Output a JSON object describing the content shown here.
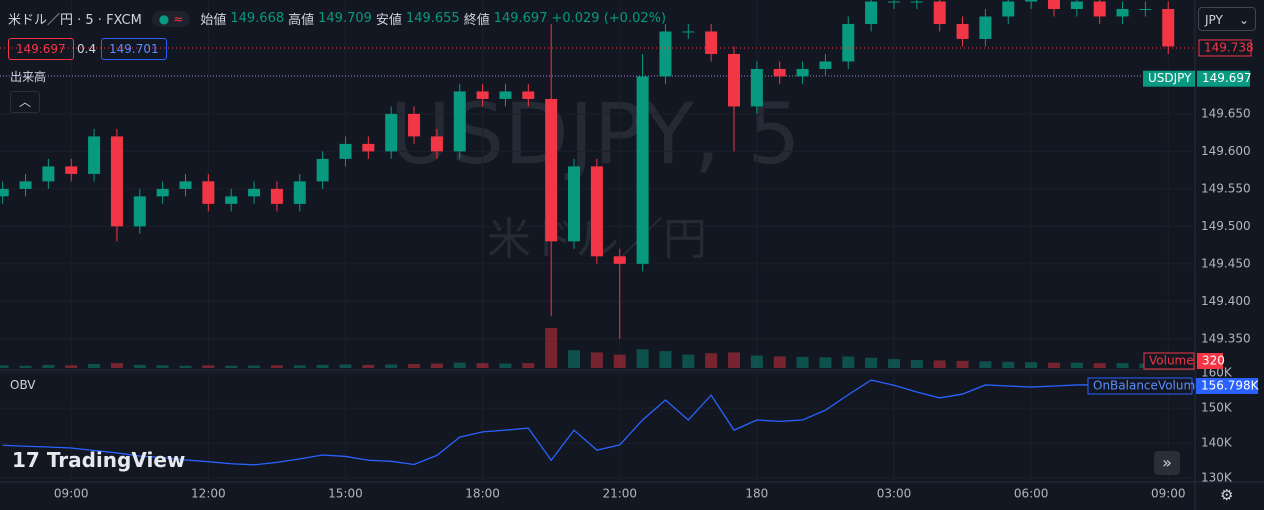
{
  "header": {
    "symbol": "米ドル／円 · 5 · FXCM",
    "open_label": "始値",
    "open": "149.668",
    "high_label": "高値",
    "high": "149.709",
    "low_label": "安値",
    "low": "149.655",
    "close_label": "終値",
    "close": "149.697",
    "change": "+0.029 (+0.02%)"
  },
  "quote": {
    "bid": "149.697",
    "spread": "0.4",
    "ask": "149.701"
  },
  "volume_pane_label": "出来高",
  "currency": "JPY",
  "brand": "TradingView",
  "watermark": {
    "symbol": "USDJPY, 5",
    "name": "米ドル／円"
  },
  "chart_data": {
    "type": "candlestick",
    "x": [
      -18,
      -12,
      -6,
      0,
      6,
      12,
      18,
      24,
      30,
      36,
      42,
      48,
      54,
      60,
      66,
      72,
      78,
      84,
      90,
      96,
      102,
      108,
      114,
      120,
      126,
      132,
      138,
      144,
      150,
      156,
      162,
      168,
      174,
      180,
      186,
      192,
      198,
      204,
      210,
      216,
      222,
      228,
      234,
      240,
      246,
      252,
      258,
      264,
      270,
      276,
      282,
      288
    ],
    "open": [
      149.54,
      149.55,
      149.56,
      149.58,
      149.57,
      149.62,
      149.5,
      149.54,
      149.55,
      149.56,
      149.53,
      149.54,
      149.55,
      149.53,
      149.56,
      149.59,
      149.61,
      149.6,
      149.65,
      149.62,
      149.6,
      149.68,
      149.67,
      149.68,
      149.67,
      149.48,
      149.58,
      149.46,
      149.45,
      149.7,
      149.76,
      149.76,
      149.73,
      149.66,
      149.71,
      149.7,
      149.71,
      149.72,
      149.77,
      149.8,
      149.8,
      149.8,
      149.77,
      149.75,
      149.78,
      149.8,
      149.81,
      149.79,
      149.8,
      149.78,
      149.79,
      149.79
    ],
    "high": [
      149.56,
      149.57,
      149.59,
      149.59,
      149.63,
      149.63,
      149.55,
      149.56,
      149.57,
      149.57,
      149.55,
      149.56,
      149.56,
      149.57,
      149.6,
      149.62,
      149.62,
      149.66,
      149.66,
      149.63,
      149.69,
      149.69,
      149.69,
      149.69,
      149.77,
      149.59,
      149.59,
      149.47,
      149.73,
      149.77,
      149.77,
      149.77,
      149.74,
      149.72,
      149.72,
      149.72,
      149.73,
      149.78,
      149.81,
      149.81,
      149.81,
      149.81,
      149.78,
      149.79,
      149.81,
      149.82,
      149.82,
      149.81,
      149.81,
      149.8,
      149.8,
      149.8
    ],
    "low": [
      149.53,
      149.54,
      149.55,
      149.56,
      149.56,
      149.48,
      149.49,
      149.53,
      149.54,
      149.52,
      149.52,
      149.53,
      149.52,
      149.52,
      149.55,
      149.58,
      149.59,
      149.59,
      149.61,
      149.59,
      149.59,
      149.66,
      149.66,
      149.66,
      149.38,
      149.47,
      149.45,
      149.35,
      149.44,
      149.69,
      149.75,
      149.72,
      149.6,
      149.65,
      149.69,
      149.69,
      149.7,
      149.71,
      149.76,
      149.79,
      149.79,
      149.76,
      149.74,
      149.74,
      149.77,
      149.79,
      149.78,
      149.78,
      149.77,
      149.77,
      149.78,
      149.73
    ],
    "close": [
      149.55,
      149.56,
      149.58,
      149.57,
      149.62,
      149.5,
      149.54,
      149.55,
      149.56,
      149.53,
      149.54,
      149.55,
      149.53,
      149.56,
      149.59,
      149.61,
      149.6,
      149.65,
      149.62,
      149.6,
      149.68,
      149.67,
      149.68,
      149.67,
      149.48,
      149.58,
      149.46,
      149.45,
      149.7,
      149.76,
      149.76,
      149.73,
      149.66,
      149.71,
      149.7,
      149.71,
      149.72,
      149.77,
      149.8,
      149.8,
      149.8,
      149.77,
      149.75,
      149.78,
      149.8,
      149.81,
      149.79,
      149.8,
      149.78,
      149.79,
      149.79,
      149.74
    ],
    "up_color": "#089981",
    "down_color": "#f23645",
    "xlim": [
      -18.7,
      294.5
    ],
    "xticks": [
      {
        "value": 0,
        "label": "09:00"
      },
      {
        "value": 36,
        "label": "12:00"
      },
      {
        "value": 72,
        "label": "15:00"
      },
      {
        "value": 108,
        "label": "18:00"
      },
      {
        "value": 144,
        "label": "21:00"
      },
      180,
      {
        "value": 216,
        "label": "03:00"
      },
      {
        "value": 252,
        "label": "06:00"
      },
      {
        "value": 288,
        "label": "09:00"
      }
    ],
    "ylim": [
      149.311,
      149.802
    ],
    "yticks": [
      {
        "value": 149.35,
        "label": "149.350"
      },
      {
        "value": 149.4,
        "label": "149.400"
      },
      {
        "value": 149.45,
        "label": "149.450"
      },
      {
        "value": 149.5,
        "label": "149.500"
      },
      {
        "value": 149.55,
        "label": "149.550"
      },
      {
        "value": 149.6,
        "label": "149.600"
      },
      {
        "value": 149.65,
        "label": "149.650"
      }
    ],
    "grid": true,
    "last_price": 149.738,
    "symbol_badge": {
      "name": "USDJPY",
      "value": 149.697
    },
    "volume": {
      "name": "Volume",
      "values": [
        60,
        50,
        70,
        60,
        90,
        110,
        70,
        60,
        50,
        60,
        50,
        55,
        60,
        60,
        70,
        80,
        70,
        80,
        90,
        100,
        120,
        110,
        100,
        110,
        900,
        400,
        350,
        300,
        420,
        380,
        300,
        330,
        350,
        280,
        260,
        250,
        240,
        260,
        230,
        200,
        180,
        170,
        160,
        150,
        140,
        130,
        120,
        120,
        110,
        110,
        100,
        320
      ]
    },
    "obv": {
      "name": "OnBalanceVolume",
      "label": "OBV",
      "color": "#2962ff",
      "values": [
        139400,
        139100,
        138900,
        138600,
        137900,
        137200,
        136300,
        135900,
        135200,
        134700,
        134100,
        133800,
        134500,
        135500,
        136600,
        136200,
        135100,
        134800,
        133900,
        136500,
        141700,
        143200,
        143700,
        144300,
        135100,
        143700,
        138000,
        139500,
        146600,
        152300,
        146600,
        153700,
        143700,
        146600,
        146200,
        146600,
        149400,
        153800,
        158000,
        156500,
        154600,
        152900,
        154000,
        156600,
        156300,
        156000,
        156300,
        156600,
        156600,
        156700,
        156700,
        156798
      ],
      "last_label": "156.798K",
      "ylim": [
        128900,
        160300
      ],
      "yticks": [
        {
          "value": 130000,
          "label": "130K"
        },
        {
          "value": 140000,
          "label": "140K"
        },
        {
          "value": 150000,
          "label": "150K"
        },
        {
          "value": 160000,
          "label": "160K"
        }
      ]
    }
  }
}
